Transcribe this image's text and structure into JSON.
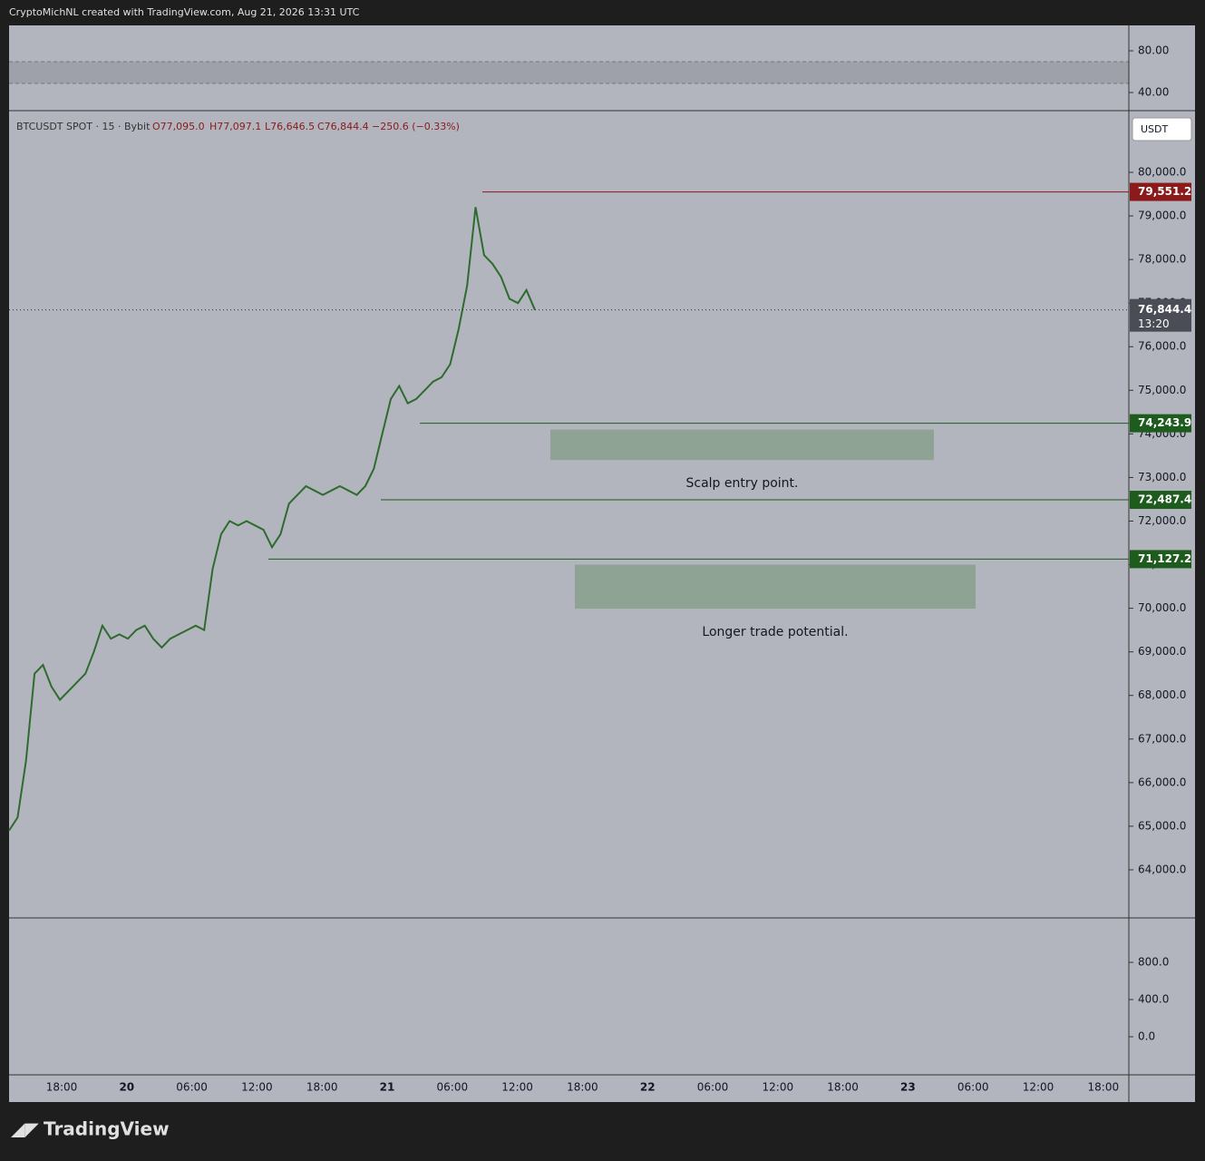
{
  "header": "CryptoMichNL created with TradingView.com, Aug 21, 2026 13:31 UTC",
  "footer": "TradingView",
  "chart_data": {
    "type": "line",
    "symbol": "BTCUSDT SPOT · 15 · Bybit",
    "ohlc": [
      "O77,095.0",
      "H77,097.1",
      "L76,646.5",
      "C76,844.4",
      "−250.6 (−0.33%)"
    ],
    "currency": "USDT",
    "color": "#2e6b2e",
    "values": [
      64900,
      65200,
      66500,
      68500,
      68700,
      68200,
      67900,
      68100,
      68300,
      68500,
      69000,
      69600,
      69300,
      69400,
      69300,
      69500,
      69600,
      69300,
      69100,
      69300,
      69400,
      69500,
      69600,
      69500,
      70900,
      71700,
      72000,
      71900,
      72000,
      71900,
      71800,
      71400,
      71700,
      72400,
      72600,
      72800,
      72700,
      72600,
      72700,
      72800,
      72700,
      72600,
      72800,
      73200,
      74000,
      74800,
      75100,
      74700,
      74800,
      75000,
      75200,
      75300,
      75600,
      76400,
      77400,
      79200,
      78100,
      77900,
      77600,
      77100,
      77000,
      77300,
      76844.4
    ],
    "ylim": [
      62600,
      81500
    ],
    "yticks": [
      {
        "value": 64000,
        "label": "64,000.0"
      },
      {
        "value": 65000,
        "label": "65,000.0"
      },
      {
        "value": 66000,
        "label": "66,000.0"
      },
      {
        "value": 67000,
        "label": "67,000.0"
      },
      {
        "value": 68000,
        "label": "68,000.0"
      },
      {
        "value": 69000,
        "label": "69,000.0"
      },
      {
        "value": 70000,
        "label": "70,000.0"
      },
      {
        "value": 71000,
        "label": "71,000.0"
      },
      {
        "value": 72000,
        "label": "72,000.0"
      },
      {
        "value": 73000,
        "label": "73,000.0"
      },
      {
        "value": 74000,
        "label": "74,000.0"
      },
      {
        "value": 75000,
        "label": "75,000.0"
      },
      {
        "value": 76000,
        "label": "76,000.0"
      },
      {
        "value": 77000,
        "label": "77,000.0"
      },
      {
        "value": 78000,
        "label": "78,000.0"
      },
      {
        "value": 79000,
        "label": "79,000.0"
      },
      {
        "value": 80000,
        "label": "80,000.0"
      }
    ],
    "xticks": [
      "18:00",
      "20",
      "06:00",
      "12:00",
      "18:00",
      "21",
      "06:00",
      "12:00",
      "18:00",
      "22",
      "06:00",
      "12:00",
      "18:00",
      "23",
      "06:00",
      "12:00",
      "18:00"
    ],
    "levels": [
      {
        "value": 79551.2,
        "label": "79,551.2",
        "color": "#8b1a1a"
      },
      {
        "value": 74243.9,
        "label": "74,243.9",
        "color": "#1e5c1e"
      },
      {
        "value": 72487.4,
        "label": "72,487.4",
        "color": "#1e5c1e"
      },
      {
        "value": 71127.2,
        "label": "71,127.2",
        "color": "#1e5c1e"
      }
    ],
    "zones": [
      {
        "from": 74100,
        "to": 73400,
        "label": "Scalp entry point."
      },
      {
        "from": 71000,
        "to": 69990,
        "label": "Longer trade potential."
      }
    ],
    "last": {
      "value": 76844.4,
      "label": "76,844.4",
      "countdown": "13:20"
    },
    "rsi_ticks": [
      {
        "value": 80,
        "label": "80.00"
      },
      {
        "value": 40,
        "label": "40.00"
      }
    ],
    "macd_ticks": [
      {
        "value": 800,
        "label": "800.0"
      },
      {
        "value": 400,
        "label": "400.0"
      },
      {
        "value": 0,
        "label": "0.0"
      }
    ]
  }
}
